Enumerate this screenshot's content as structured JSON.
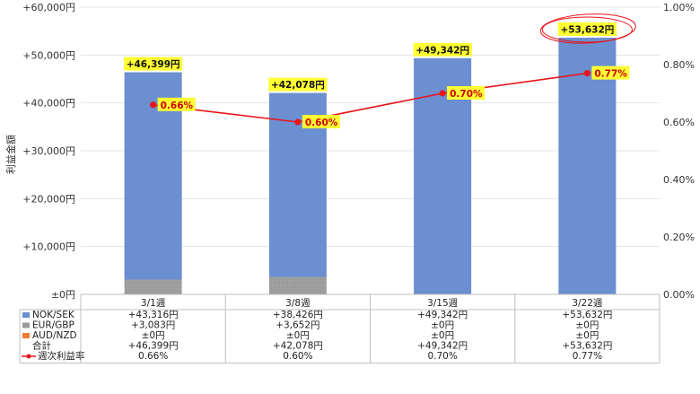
{
  "chart_data": {
    "type": "bar",
    "stacked": true,
    "categories": [
      "3/1週",
      "3/8週",
      "3/15週",
      "3/22週"
    ],
    "ylabel": "利益金額",
    "ylim": [
      0,
      60000
    ],
    "y_ticks": [
      "±0円",
      "+10,000円",
      "+20,000円",
      "+30,000円",
      "+40,000円",
      "+50,000円",
      "+60,000円"
    ],
    "y2lim": [
      0,
      1.0
    ],
    "y2_ticks": [
      "0.00%",
      "0.20%",
      "0.40%",
      "0.60%",
      "0.80%",
      "1.00%"
    ],
    "grid": true,
    "series": [
      {
        "name": "NOK/SEK",
        "values": [
          43316,
          38426,
          49342,
          53632
        ],
        "labels": [
          "+43,316円",
          "+38,426円",
          "+49,342円",
          "+53,632円"
        ],
        "color": "#6b8fd0"
      },
      {
        "name": "EUR/GBP",
        "values": [
          3083,
          3652,
          0,
          0
        ],
        "labels": [
          "+3,083円",
          "+3,652円",
          "±0円",
          "±0円"
        ],
        "color": "#9a9a9a"
      },
      {
        "name": "AUD/NZD",
        "values": [
          0,
          0,
          0,
          0
        ],
        "labels": [
          "±0円",
          "±0円",
          "±0円",
          "±0円"
        ],
        "color": "#ed7d31"
      }
    ],
    "totals": {
      "name": "合計",
      "values": [
        46399,
        42078,
        49342,
        53632
      ],
      "labels": [
        "+46,399円",
        "+42,078円",
        "+49,342円",
        "+53,632円"
      ]
    },
    "rate": {
      "name": "週次利益率",
      "values": [
        0.66,
        0.6,
        0.7,
        0.77
      ],
      "labels": [
        "0.66%",
        "0.60%",
        "0.70%",
        "0.77%"
      ],
      "color": "#e8141b"
    },
    "label_highlight": "#ffff33",
    "circled_label_index": 3
  }
}
